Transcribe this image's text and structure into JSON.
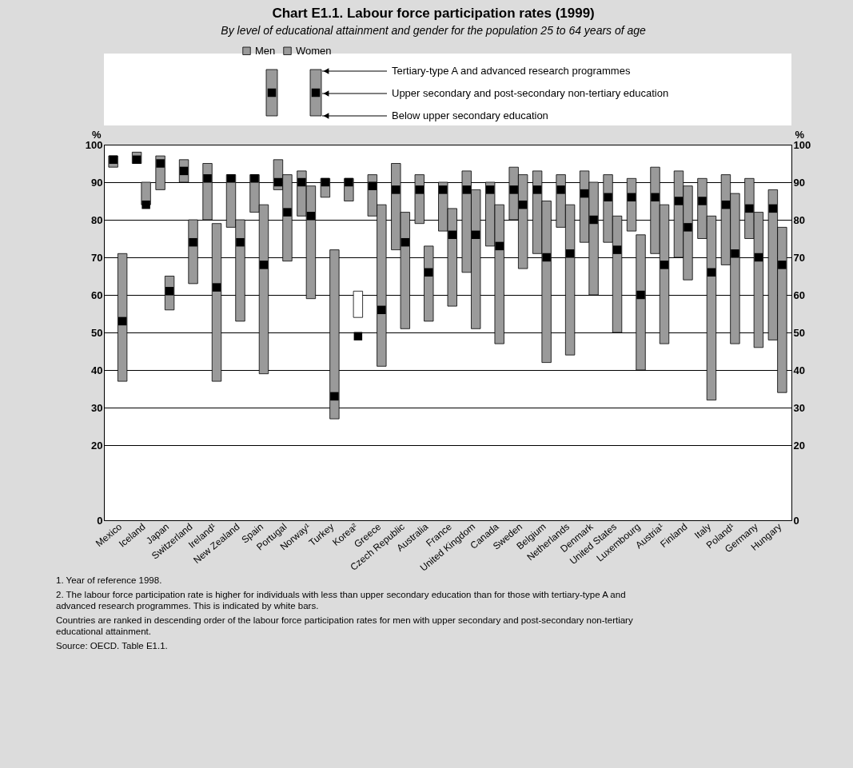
{
  "chart_data": {
    "type": "bar",
    "title": "Chart E1.1. Labour force participation rates (1999)",
    "subtitle": "By level of educational attainment and gender for the population 25 to 64 years of age",
    "ylabel": "%",
    "y2label": "%",
    "categories": [
      "Mexico",
      "Iceland",
      "Japan",
      "Switzerland",
      "Ireland¹",
      "New Zealand",
      "Spain",
      "Portugal",
      "Norway¹",
      "Turkey",
      "Korea²",
      "Greece",
      "Czech Republic",
      "Australia",
      "France",
      "United Kingdom",
      "Canada",
      "Sweden",
      "Belgium",
      "Netherlands",
      "Denmark",
      "United States",
      "Luxembourg",
      "Austria¹",
      "Finland",
      "Italy",
      "Poland¹",
      "Germany",
      "Hungary"
    ],
    "series": [
      {
        "type": "bar",
        "name": "Men",
        "color": "#9a9a9a",
        "base": [
          94,
          95,
          88,
          90,
          80,
          78,
          82,
          88,
          81,
          86,
          85,
          81,
          72,
          79,
          77,
          66,
          73,
          80,
          71,
          78,
          74,
          74,
          77,
          71,
          70,
          75,
          68,
          75,
          48
        ],
        "values": [
          3,
          3,
          9,
          6,
          15,
          14,
          10,
          8,
          12,
          5,
          6,
          11,
          23,
          13,
          13,
          27,
          17,
          14,
          22,
          14,
          19,
          18,
          14,
          23,
          23,
          16,
          24,
          16,
          40
        ]
      },
      {
        "type": "bar",
        "name": "Women",
        "color": "#9a9a9a",
        "colors": [
          "#9a9a9a",
          "#9a9a9a",
          "#9a9a9a",
          "#9a9a9a",
          "#9a9a9a",
          "#9a9a9a",
          "#9a9a9a",
          "#9a9a9a",
          "#9a9a9a",
          "#9a9a9a",
          "#ffffff",
          "#9a9a9a",
          "#9a9a9a",
          "#9a9a9a",
          "#9a9a9a",
          "#9a9a9a",
          "#9a9a9a",
          "#9a9a9a",
          "#9a9a9a",
          "#9a9a9a",
          "#9a9a9a",
          "#9a9a9a",
          "#9a9a9a",
          "#9a9a9a",
          "#9a9a9a",
          "#9a9a9a",
          "#9a9a9a",
          "#9a9a9a",
          "#9a9a9a"
        ],
        "base": [
          37,
          84,
          56,
          63,
          37,
          53,
          39,
          69,
          59,
          27,
          54,
          41,
          51,
          53,
          57,
          51,
          47,
          67,
          42,
          44,
          60,
          50,
          40,
          47,
          64,
          32,
          47,
          46,
          34
        ],
        "values": [
          34,
          6,
          9,
          17,
          42,
          27,
          45,
          23,
          30,
          45,
          7,
          43,
          31,
          20,
          26,
          37,
          37,
          25,
          43,
          40,
          30,
          31,
          36,
          37,
          25,
          49,
          40,
          36,
          44
        ]
      },
      {
        "type": "scatter",
        "color": "#000000",
        "values": [
          96,
          96,
          95,
          93,
          91,
          91,
          91,
          90,
          90,
          90,
          90,
          89,
          88,
          88,
          88,
          88,
          88,
          88,
          88,
          88,
          87,
          86,
          86,
          86,
          85,
          85,
          84,
          83,
          83
        ]
      },
      {
        "type": "scatter",
        "color": "#000000",
        "values": [
          53,
          84,
          61,
          74,
          62,
          74,
          68,
          82,
          81,
          33,
          49,
          56,
          74,
          66,
          76,
          76,
          73,
          84,
          70,
          71,
          80,
          72,
          60,
          68,
          78,
          66,
          71,
          70,
          68
        ]
      }
    ],
    "ylim": [
      0,
      100
    ],
    "yticks": [
      0,
      20,
      30,
      40,
      50,
      60,
      70,
      80,
      90,
      100
    ],
    "y2lim": [
      0,
      100
    ],
    "y2ticks": [
      0,
      20,
      30,
      40,
      50,
      60,
      70,
      80,
      90,
      100
    ],
    "grid": "y",
    "legend": "top",
    "marker": "square",
    "annotations": [
      "Tertiary-type A and advanced research programmes",
      "Upper secondary and post-secondary non-tertiary education",
      "Below upper secondary education",
      "1. Year of reference 1998.",
      "2. The labour force participation rate is higher for individuals with less than upper secondary education than for those with tertiary-type A and advanced research programmes. This is indicated by white bars.",
      "Countries are ranked in descending order of the labour force participation rates for men with upper secondary and post-secondary non-tertiary educational attainment.",
      "Source: OECD. Table E1.1."
    ]
  }
}
